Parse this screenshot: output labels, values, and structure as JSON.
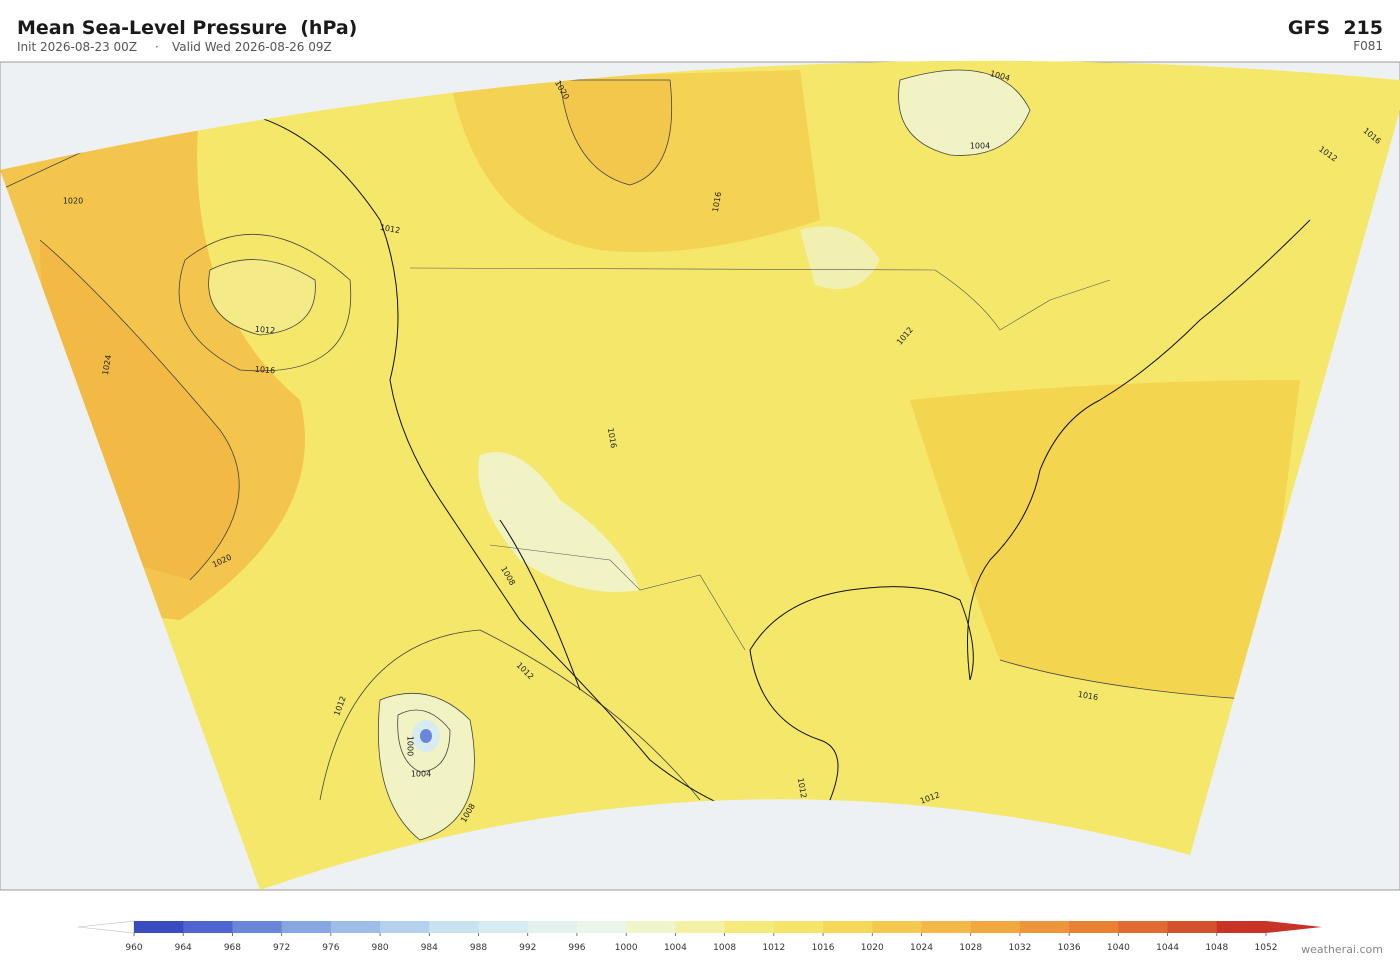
{
  "header": {
    "title": "Mean Sea-Level Pressure  (hPa)",
    "init": "Init 2026-08-23 00Z",
    "separator": "·",
    "valid": "Valid Wed 2026-08-26 09Z",
    "model": "GFS  215",
    "forecast_hour": "F081"
  },
  "contour_labels": [
    "1020",
    "1012",
    "1012",
    "1016",
    "1024",
    "1020",
    "1012",
    "1008",
    "1012",
    "1000",
    "1004",
    "1008",
    "1012",
    "1012",
    "1016",
    "1016",
    "1004",
    "1004",
    "1016",
    "1012",
    "1020",
    "1016",
    "1012"
  ],
  "colorbar": {
    "ticks": [
      960,
      964,
      968,
      972,
      976,
      980,
      984,
      988,
      992,
      996,
      1000,
      1004,
      1008,
      1012,
      1016,
      1020,
      1024,
      1028,
      1032,
      1036,
      1040,
      1044,
      1048,
      1052
    ],
    "colors": [
      "#3b4cc0",
      "#5065cf",
      "#6a86d8",
      "#85a6e0",
      "#9dbde6",
      "#b3d1ec",
      "#c8e2ef",
      "#d6ecf0",
      "#e3f2ef",
      "#eaf6ea",
      "#f1f5cc",
      "#f4f1a6",
      "#f5eb7c",
      "#f6e46a",
      "#f5d85a",
      "#f4c94f",
      "#f3b848",
      "#f1a840",
      "#ee953a",
      "#e98135",
      "#e06a30",
      "#d5512b",
      "#c73427"
    ],
    "under_color": "#ffffff",
    "over_color": "#c73427"
  },
  "credit": "weatherai.com"
}
